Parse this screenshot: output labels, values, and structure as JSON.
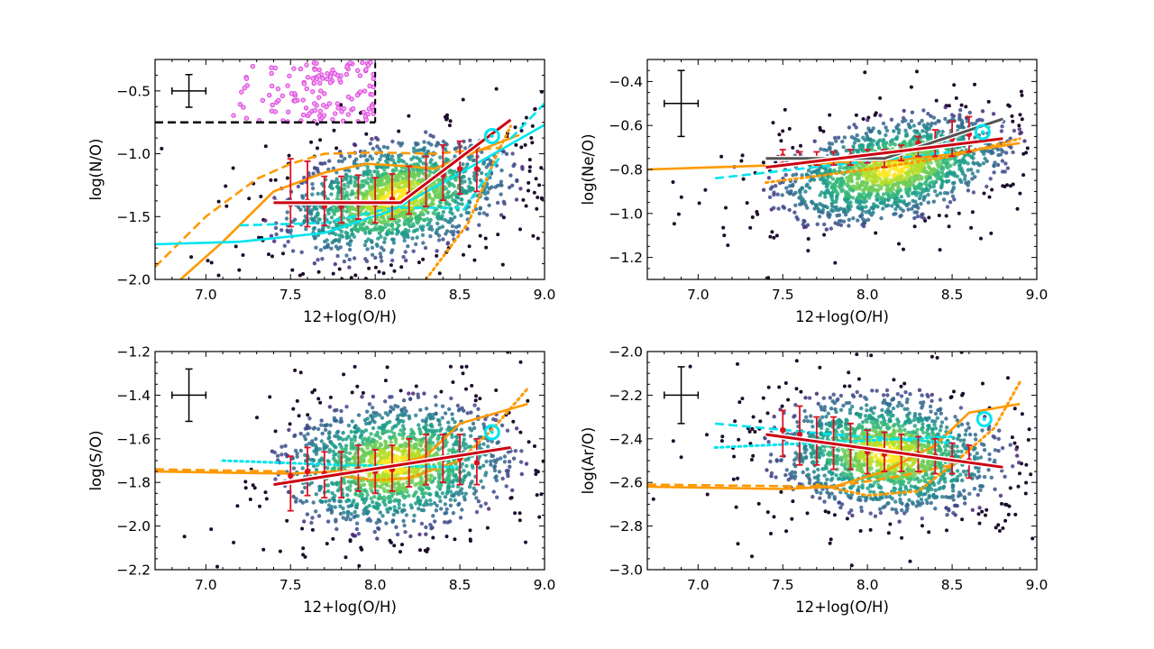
{
  "chart_data": [
    {
      "type": "scatter",
      "xlabel": "12+log(O/H)",
      "ylabel": "log(N/O)",
      "xlim": [
        6.7,
        9.0
      ],
      "ylim": [
        -2.0,
        -0.25
      ],
      "xticks": [
        "7.0",
        "7.5",
        "8.0",
        "8.5",
        "9.0"
      ],
      "yticks": [
        "-2.0",
        "-1.5",
        "-1.0",
        "-0.5"
      ],
      "ytick_values": [
        -2.0,
        -1.5,
        -1.0,
        -0.5
      ],
      "typical_error": {
        "x": 6.9,
        "y": -0.5,
        "xerr": 0.1,
        "yerr": 0.13
      },
      "binned_medians": {
        "x": [
          7.5,
          7.6,
          7.7,
          7.8,
          7.9,
          8.0,
          8.1,
          8.2,
          8.3,
          8.4,
          8.5,
          8.6
        ],
        "y": [
          -1.4,
          -1.38,
          -1.42,
          -1.42,
          -1.4,
          -1.4,
          -1.36,
          -1.32,
          -1.24,
          -1.17,
          -1.12,
          -1.12
        ],
        "lo": [
          -1.58,
          -1.58,
          -1.57,
          -1.55,
          -1.52,
          -1.55,
          -1.52,
          -1.48,
          -1.42,
          -1.37,
          -1.32,
          -1.3
        ],
        "hi": [
          -1.04,
          -1.06,
          -1.18,
          -1.18,
          -1.17,
          -1.19,
          -1.16,
          -1.1,
          -1.02,
          -0.93,
          -0.9,
          -0.95
        ]
      },
      "fit": {
        "x": [
          7.4,
          8.15,
          8.8
        ],
        "y": [
          -1.39,
          -1.39,
          -0.73
        ]
      },
      "reference_point": {
        "x": 8.69,
        "y": -0.86
      },
      "lines": [
        {
          "color": "#ff9900",
          "style": "solid",
          "x": [
            6.85,
            7.1,
            7.4,
            7.7,
            7.95,
            8.2,
            8.35,
            8.6,
            8.85
          ],
          "y": [
            -2.0,
            -1.7,
            -1.3,
            -1.15,
            -1.08,
            -1.1,
            -1.12,
            -0.98,
            -0.85
          ]
        },
        {
          "color": "#ff9900",
          "style": "dashed",
          "x": [
            6.7,
            7.0,
            7.3,
            7.5,
            7.7,
            8.0,
            8.35,
            8.75
          ],
          "y": [
            -1.9,
            -1.5,
            -1.2,
            -1.08,
            -1.0,
            -0.99,
            -1.0,
            -0.95
          ]
        },
        {
          "color": "#ff9900",
          "style": "dotted",
          "x": [
            8.3,
            8.55,
            8.72,
            8.8
          ],
          "y": [
            -2.0,
            -1.55,
            -1.0,
            -0.78
          ]
        },
        {
          "color": "#00e5ee",
          "style": "solid",
          "x": [
            6.7,
            7.2,
            7.7,
            8.1,
            8.4,
            8.7,
            9.0
          ],
          "y": [
            -1.72,
            -1.7,
            -1.63,
            -1.45,
            -1.23,
            -1.0,
            -0.77
          ]
        },
        {
          "color": "#00e5ee",
          "style": "dashed",
          "x": [
            7.2,
            7.7,
            8.1,
            8.5
          ],
          "y": [
            -1.57,
            -1.55,
            -1.43,
            -1.43
          ]
        },
        {
          "color": "#00e5ee",
          "style": "dashed",
          "x": [
            8.52,
            8.75
          ],
          "y": [
            -1.45,
            -1.0
          ]
        },
        {
          "color": "#00e5ee",
          "style": "dashed",
          "x": [
            8.8,
            9.0
          ],
          "y": [
            -0.88,
            -0.6
          ]
        }
      ],
      "thresholds": {
        "y": -0.75,
        "x": 8.0
      },
      "highlight_points_color": "#dd44dd"
    },
    {
      "type": "scatter",
      "xlabel": "12+log(O/H)",
      "ylabel": "log(Ne/O)",
      "xlim": [
        6.7,
        9.0
      ],
      "ylim": [
        -1.3,
        -0.3
      ],
      "xticks": [
        "7.0",
        "7.5",
        "8.0",
        "8.5",
        "9.0"
      ],
      "yticks": [
        "-1.2",
        "-1.0",
        "-0.8",
        "-0.6",
        "-0.4"
      ],
      "ytick_values": [
        -1.2,
        -1.0,
        -0.8,
        -0.6,
        -0.4
      ],
      "typical_error": {
        "x": 6.9,
        "y": -0.5,
        "xerr": 0.1,
        "yerr": 0.15
      },
      "binned_medians": {
        "x": [
          7.5,
          7.6,
          7.7,
          7.8,
          7.9,
          8.0,
          8.1,
          8.2,
          8.3,
          8.4,
          8.5,
          8.6
        ],
        "y": [
          -0.74,
          -0.75,
          -0.75,
          -0.75,
          -0.74,
          -0.74,
          -0.73,
          -0.72,
          -0.68,
          -0.68,
          -0.66,
          -0.64
        ],
        "lo": [
          -0.77,
          -0.78,
          -0.78,
          -0.78,
          -0.78,
          -0.77,
          -0.79,
          -0.76,
          -0.74,
          -0.74,
          -0.74,
          -0.72
        ],
        "hi": [
          -0.71,
          -0.72,
          -0.72,
          -0.72,
          -0.71,
          -0.71,
          -0.71,
          -0.69,
          -0.65,
          -0.62,
          -0.58,
          -0.56
        ]
      },
      "fit": {
        "x": [
          7.4,
          8.8
        ],
        "y": [
          -0.79,
          -0.66
        ]
      },
      "fit_broken": {
        "x": [
          7.4,
          8.1,
          8.8
        ],
        "y": [
          -0.75,
          -0.75,
          -0.57
        ]
      },
      "reference_point": {
        "x": 8.68,
        "y": -0.63
      },
      "lines": [
        {
          "color": "#ff9900",
          "style": "solid",
          "x": [
            6.7,
            7.5,
            8.1,
            8.4,
            8.9
          ],
          "y": [
            -0.8,
            -0.78,
            -0.76,
            -0.74,
            -0.68
          ]
        },
        {
          "color": "#ff9900",
          "style": "dotted",
          "x": [
            7.4,
            8.0,
            8.5,
            8.9
          ],
          "y": [
            -0.86,
            -0.8,
            -0.74,
            -0.66
          ]
        },
        {
          "color": "#00e5ee",
          "style": "dashed",
          "x": [
            7.1,
            8.5
          ],
          "y": [
            -0.84,
            -0.72
          ]
        }
      ]
    },
    {
      "type": "scatter",
      "xlabel": "12+log(O/H)",
      "ylabel": "log(S/O)",
      "xlim": [
        6.7,
        9.0
      ],
      "ylim": [
        -2.2,
        -1.2
      ],
      "xticks": [
        "7.0",
        "7.5",
        "8.0",
        "8.5",
        "9.0"
      ],
      "yticks": [
        "-2.2",
        "-2.0",
        "-1.8",
        "-1.6",
        "-1.4",
        "-1.2"
      ],
      "ytick_values": [
        -2.2,
        -2.0,
        -1.8,
        -1.6,
        -1.4,
        -1.2
      ],
      "typical_error": {
        "x": 6.9,
        "y": -1.4,
        "xerr": 0.1,
        "yerr": 0.12
      },
      "binned_medians": {
        "x": [
          7.5,
          7.6,
          7.7,
          7.8,
          7.9,
          8.0,
          8.1,
          8.2,
          8.3,
          8.4,
          8.5,
          8.6
        ],
        "y": [
          -1.77,
          -1.75,
          -1.76,
          -1.76,
          -1.74,
          -1.75,
          -1.74,
          -1.71,
          -1.7,
          -1.69,
          -1.69,
          -1.71
        ],
        "lo": [
          -1.93,
          -1.86,
          -1.87,
          -1.87,
          -1.84,
          -1.85,
          -1.84,
          -1.82,
          -1.81,
          -1.8,
          -1.81,
          -1.81
        ],
        "hi": [
          -1.68,
          -1.64,
          -1.66,
          -1.66,
          -1.63,
          -1.65,
          -1.63,
          -1.6,
          -1.58,
          -1.58,
          -1.58,
          -1.6
        ]
      },
      "fit": {
        "x": [
          7.4,
          8.8
        ],
        "y": [
          -1.81,
          -1.64
        ]
      },
      "reference_point": {
        "x": 8.69,
        "y": -1.57
      },
      "lines": [
        {
          "color": "#ff9900",
          "style": "solid",
          "x": [
            6.7,
            7.5,
            8.0,
            8.3,
            8.5,
            8.9
          ],
          "y": [
            -1.75,
            -1.76,
            -1.74,
            -1.68,
            -1.53,
            -1.44
          ]
        },
        {
          "color": "#ff9900",
          "style": "dashed",
          "x": [
            6.7,
            7.5
          ],
          "y": [
            -1.74,
            -1.75
          ]
        },
        {
          "color": "#ff9900",
          "style": "dotted",
          "x": [
            7.7,
            8.0,
            8.2,
            8.5,
            8.7,
            8.9
          ],
          "y": [
            -1.76,
            -1.79,
            -1.78,
            -1.7,
            -1.55,
            -1.37
          ]
        },
        {
          "color": "#00e5ee",
          "style": "dotted",
          "x": [
            7.1,
            7.8,
            8.5
          ],
          "y": [
            -1.7,
            -1.72,
            -1.73
          ]
        }
      ]
    },
    {
      "type": "scatter",
      "xlabel": "12+log(O/H)",
      "ylabel": "log(Ar/O)",
      "xlim": [
        6.7,
        9.0
      ],
      "ylim": [
        -3.0,
        -2.0
      ],
      "xticks": [
        "7.0",
        "7.5",
        "8.0",
        "8.5",
        "9.0"
      ],
      "yticks": [
        "-3.0",
        "-2.8",
        "-2.6",
        "-2.4",
        "-2.2",
        "-2.0"
      ],
      "ytick_values": [
        -3.0,
        -2.8,
        -2.6,
        -2.4,
        -2.2,
        -2.0
      ],
      "typical_error": {
        "x": 6.9,
        "y": -2.2,
        "xerr": 0.1,
        "yerr": 0.13
      },
      "binned_medians": {
        "x": [
          7.5,
          7.6,
          7.7,
          7.8,
          7.9,
          8.0,
          8.1,
          8.2,
          8.3,
          8.4,
          8.5,
          8.6
        ],
        "y": [
          -2.36,
          -2.38,
          -2.41,
          -2.43,
          -2.44,
          -2.46,
          -2.47,
          -2.47,
          -2.47,
          -2.48,
          -2.49,
          -2.5
        ],
        "lo": [
          -2.48,
          -2.52,
          -2.52,
          -2.54,
          -2.54,
          -2.56,
          -2.55,
          -2.55,
          -2.55,
          -2.56,
          -2.56,
          -2.58
        ],
        "hi": [
          -2.27,
          -2.25,
          -2.3,
          -2.3,
          -2.33,
          -2.36,
          -2.37,
          -2.38,
          -2.39,
          -2.4,
          -2.42,
          -2.43
        ]
      },
      "fit": {
        "x": [
          7.4,
          8.8
        ],
        "y": [
          -2.38,
          -2.53
        ]
      },
      "reference_point": {
        "x": 8.69,
        "y": -2.31
      },
      "lines": [
        {
          "color": "#ff9900",
          "style": "solid",
          "x": [
            6.7,
            7.5,
            7.8,
            8.1,
            8.4,
            8.6,
            8.9
          ],
          "y": [
            -2.62,
            -2.63,
            -2.62,
            -2.55,
            -2.43,
            -2.28,
            -2.24
          ]
        },
        {
          "color": "#ff9900",
          "style": "dashed",
          "x": [
            6.7,
            7.8,
            8.2,
            8.5
          ],
          "y": [
            -2.61,
            -2.62,
            -2.57,
            -2.52
          ]
        },
        {
          "color": "#ff9900",
          "style": "dotted",
          "x": [
            7.7,
            8.0,
            8.3,
            8.5,
            8.75,
            8.9
          ],
          "y": [
            -2.61,
            -2.66,
            -2.64,
            -2.52,
            -2.35,
            -2.14
          ]
        },
        {
          "color": "#00e5ee",
          "style": "dashed",
          "x": [
            7.1,
            7.8,
            8.5
          ],
          "y": [
            -2.33,
            -2.38,
            -2.42
          ]
        },
        {
          "color": "#00e5ee",
          "style": "dotted",
          "x": [
            7.1,
            8.5
          ],
          "y": [
            -2.44,
            -2.39
          ]
        }
      ]
    }
  ],
  "colors": {
    "median_bars": "#dd1122",
    "fit": "#cc0011",
    "orange": "#ff9900",
    "cyan": "#00e5ee",
    "highlight": "#dd44dd"
  }
}
